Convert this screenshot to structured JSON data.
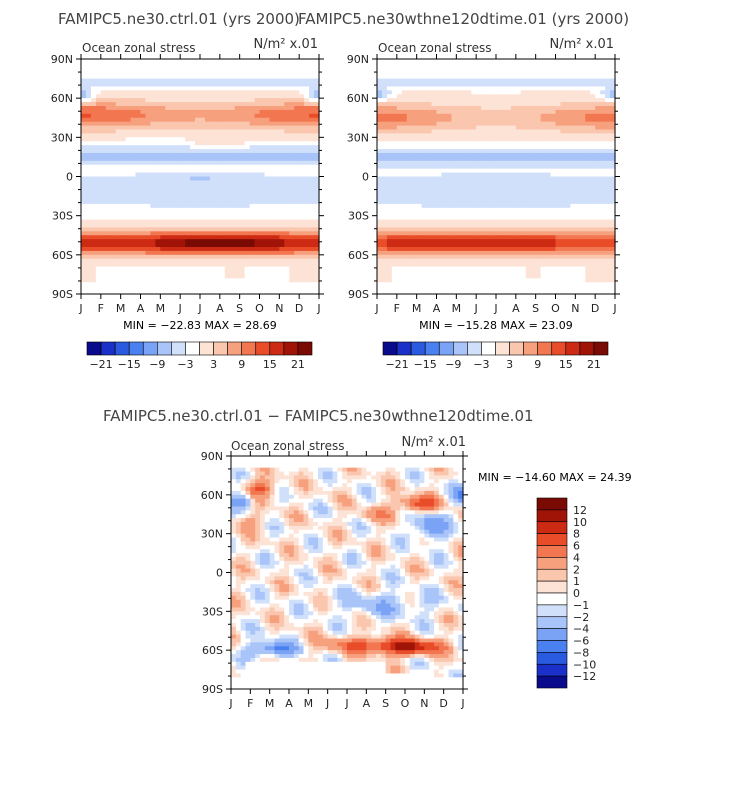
{
  "chart_data": [
    {
      "type": "heatmap",
      "title": "FAMIPC5.ne30.ctrl.01 (yrs 2000)",
      "subtitle": "Ocean zonal stress",
      "units": "N/m² x.01",
      "stats": "MIN = −22.83 MAX =  28.69",
      "min": -22.83,
      "max": 28.69,
      "x_ticks": [
        "J",
        "F",
        "M",
        "A",
        "M",
        "J",
        "J",
        "A",
        "S",
        "O",
        "N",
        "D",
        "J"
      ],
      "y_ticks": [
        "90N",
        "60N",
        "30N",
        "0",
        "30S",
        "60S",
        "90S"
      ],
      "colorbar": {
        "levels": [
          -21,
          -18,
          -15,
          -12,
          -9,
          -6,
          -3,
          0,
          3,
          6,
          9,
          12,
          15,
          18,
          21
        ],
        "labels": [
          "−21",
          "−15",
          "−9",
          "−3",
          "3",
          "9",
          "15",
          "21"
        ]
      }
    },
    {
      "type": "heatmap",
      "title": "FAMIPC5.ne30wthne120dtime.01 (yrs 2000)",
      "subtitle": "Ocean zonal stress",
      "units": "N/m² x.01",
      "stats": "MIN = −15.28 MAX =  23.09",
      "min": -15.28,
      "max": 23.09,
      "x_ticks": [
        "J",
        "F",
        "M",
        "A",
        "M",
        "J",
        "J",
        "A",
        "S",
        "O",
        "N",
        "D",
        "J"
      ],
      "y_ticks": [
        "90N",
        "60N",
        "30N",
        "0",
        "30S",
        "60S",
        "90S"
      ],
      "colorbar": {
        "levels": [
          -21,
          -18,
          -15,
          -12,
          -9,
          -6,
          -3,
          0,
          3,
          6,
          9,
          12,
          15,
          18,
          21
        ],
        "labels": [
          "−21",
          "−15",
          "−9",
          "−3",
          "3",
          "9",
          "15",
          "21"
        ]
      }
    },
    {
      "type": "heatmap",
      "title": "FAMIPC5.ne30.ctrl.01 − FAMIPC5.ne30wthne120dtime.01",
      "subtitle": "Ocean zonal stress",
      "units": "N/m² x.01",
      "stats": "MIN = −14.60 MAX =  24.39",
      "min": -14.6,
      "max": 24.39,
      "x_ticks": [
        "J",
        "F",
        "M",
        "A",
        "M",
        "J",
        "J",
        "A",
        "S",
        "O",
        "N",
        "D",
        "J"
      ],
      "y_ticks": [
        "90N",
        "60N",
        "30N",
        "0",
        "30S",
        "60S",
        "90S"
      ],
      "colorbar": {
        "levels": [
          -12,
          -10,
          -8,
          -6,
          -4,
          -2,
          -1,
          0,
          1,
          2,
          4,
          6,
          8,
          10,
          12
        ],
        "labels": [
          "12",
          "10",
          "8",
          "6",
          "4",
          "2",
          "1",
          "0",
          "−1",
          "−2",
          "−4",
          "−6",
          "−8",
          "−10",
          "−12"
        ]
      }
    }
  ],
  "palette": [
    "#0a0a8c",
    "#1a30c8",
    "#2a5ae0",
    "#4a80f0",
    "#7aa2f5",
    "#a8c4f8",
    "#d0e0fb",
    "#ffffff",
    "#fde3d6",
    "#fac6ae",
    "#f7a07e",
    "#f27650",
    "#e84c28",
    "#cc2a12",
    "#a01408",
    "#7a0a04"
  ],
  "mask_color": "#ffffff"
}
